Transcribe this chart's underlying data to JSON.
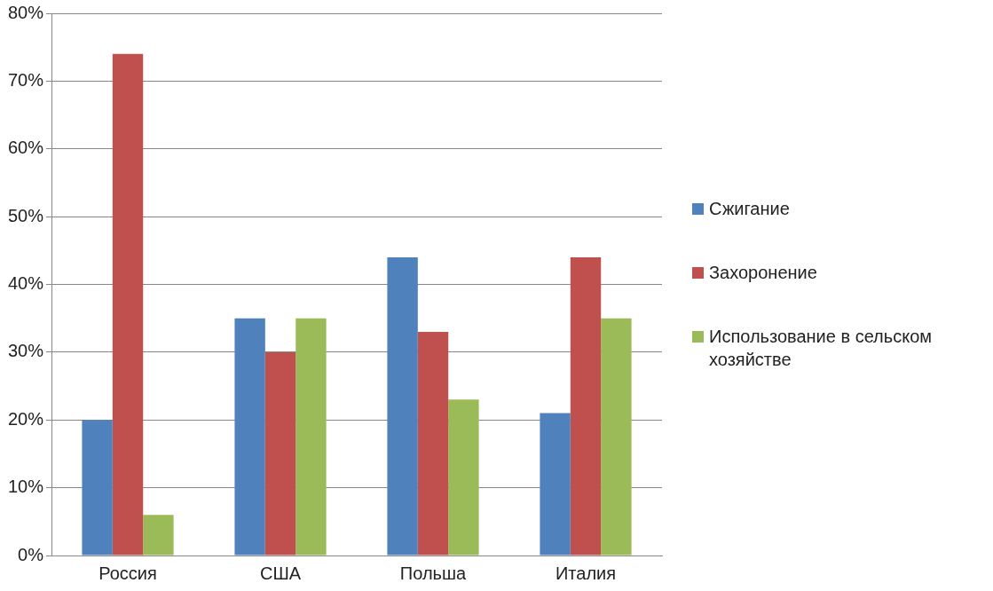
{
  "chart_data": {
    "type": "bar",
    "categories": [
      "Россия",
      "США",
      "Польша",
      "Италия"
    ],
    "series": [
      {
        "name": "Сжигание",
        "color": "#4f81bd",
        "values": [
          20,
          35,
          44,
          21
        ]
      },
      {
        "name": "Захоронение",
        "color": "#c0504d",
        "values": [
          74,
          30,
          33,
          44
        ]
      },
      {
        "name": "Использование в сельском хозяйстве",
        "color": "#9bbb59",
        "values": [
          6,
          35,
          23,
          35
        ]
      }
    ],
    "ylim": [
      0,
      80
    ],
    "yticks": [
      {
        "value": 0,
        "label": "0%"
      },
      {
        "value": 10,
        "label": "10%"
      },
      {
        "value": 20,
        "label": "20%"
      },
      {
        "value": 30,
        "label": "30%"
      },
      {
        "value": 40,
        "label": "40%"
      },
      {
        "value": 50,
        "label": "50%"
      },
      {
        "value": 60,
        "label": "60%"
      },
      {
        "value": 70,
        "label": "70%"
      },
      {
        "value": 80,
        "label": "80%"
      }
    ],
    "grid": "y",
    "legend": "right"
  }
}
